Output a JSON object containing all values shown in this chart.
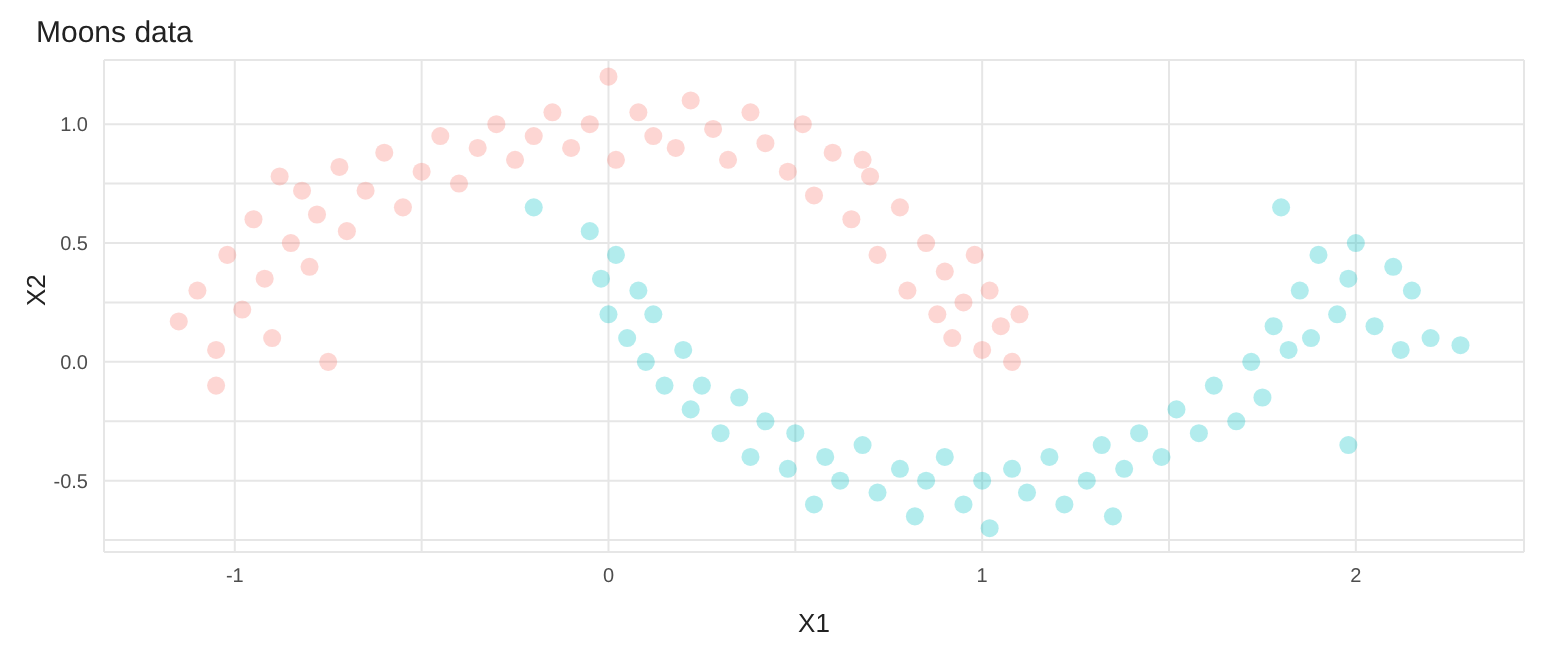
{
  "chart_data": {
    "type": "scatter",
    "title": "Moons data",
    "xlabel": "X1",
    "ylabel": "X2",
    "marker": "circle",
    "grid": true,
    "xlim": [
      -1.35,
      2.45
    ],
    "ylim": [
      -0.8,
      1.27
    ],
    "xticks": [
      -1,
      {
        "value": -0.5,
        "label": null
      },
      0,
      {
        "value": 0.5,
        "label": null
      },
      1,
      {
        "value": 1.5,
        "label": null
      },
      2
    ],
    "yticks": [
      {
        "value": -0.75,
        "label": null
      },
      -0.5,
      {
        "value": -0.25,
        "label": null
      },
      {
        "value": 0,
        "label": "0.0"
      },
      {
        "value": 0.25,
        "label": null
      },
      0.5,
      {
        "value": 0.75,
        "label": null
      },
      {
        "value": 1,
        "label": "1.0"
      }
    ],
    "series": [
      {
        "color": "#f8766d",
        "x": [
          -1.15,
          -1.1,
          -1.05,
          -1.02,
          -0.98,
          -0.95,
          -0.92,
          -0.9,
          -0.88,
          -0.85,
          -0.8,
          -0.78,
          -0.75,
          -0.72,
          -0.7,
          -0.65,
          -0.6,
          -0.55,
          -0.5,
          -0.45,
          -0.4,
          -0.35,
          -0.3,
          -0.25,
          -0.2,
          -0.15,
          -0.1,
          -0.05,
          0.0,
          0.02,
          0.08,
          0.12,
          0.18,
          0.22,
          0.28,
          0.32,
          0.38,
          0.42,
          0.48,
          0.52,
          0.55,
          0.6,
          0.65,
          0.7,
          0.72,
          0.78,
          0.8,
          0.85,
          0.88,
          0.9,
          0.92,
          0.95,
          0.98,
          1.0,
          1.02,
          1.05,
          1.08,
          1.1,
          0.68,
          -0.82,
          -1.05
        ],
        "values": [
          0.17,
          0.3,
          0.05,
          0.45,
          0.22,
          0.6,
          0.35,
          0.1,
          0.78,
          0.5,
          0.4,
          0.62,
          0.0,
          0.82,
          0.55,
          0.72,
          0.88,
          0.65,
          0.8,
          0.95,
          0.75,
          0.9,
          1.0,
          0.85,
          0.95,
          1.05,
          0.9,
          1.0,
          1.2,
          0.85,
          1.05,
          0.95,
          0.9,
          1.1,
          0.98,
          0.85,
          1.05,
          0.92,
          0.8,
          1.0,
          0.7,
          0.88,
          0.6,
          0.78,
          0.45,
          0.65,
          0.3,
          0.5,
          0.2,
          0.38,
          0.1,
          0.25,
          0.45,
          0.05,
          0.3,
          0.15,
          0.0,
          0.2,
          0.85,
          0.72,
          -0.1
        ]
      },
      {
        "color": "#00bfc4",
        "x": [
          -0.05,
          -0.02,
          0.0,
          0.02,
          0.05,
          0.08,
          0.1,
          0.12,
          0.15,
          0.2,
          0.22,
          0.25,
          0.3,
          0.35,
          0.38,
          0.42,
          0.48,
          0.5,
          0.55,
          0.58,
          0.62,
          0.68,
          0.72,
          0.78,
          0.82,
          0.85,
          0.9,
          0.95,
          1.0,
          1.02,
          1.08,
          1.12,
          1.18,
          1.22,
          1.28,
          1.32,
          1.38,
          1.42,
          1.48,
          1.52,
          1.58,
          1.62,
          1.68,
          1.72,
          1.75,
          1.78,
          1.82,
          1.85,
          1.88,
          1.9,
          1.95,
          1.98,
          2.0,
          2.05,
          2.1,
          2.12,
          2.15,
          2.2,
          2.28,
          1.8,
          -0.2,
          1.98,
          1.35
        ],
        "values": [
          0.55,
          0.35,
          0.2,
          0.45,
          0.1,
          0.3,
          0.0,
          0.2,
          -0.1,
          0.05,
          -0.2,
          -0.1,
          -0.3,
          -0.15,
          -0.4,
          -0.25,
          -0.45,
          -0.3,
          -0.6,
          -0.4,
          -0.5,
          -0.35,
          -0.55,
          -0.45,
          -0.65,
          -0.5,
          -0.4,
          -0.6,
          -0.5,
          -0.7,
          -0.45,
          -0.55,
          -0.4,
          -0.6,
          -0.5,
          -0.35,
          -0.45,
          -0.3,
          -0.4,
          -0.2,
          -0.3,
          -0.1,
          -0.25,
          0.0,
          -0.15,
          0.15,
          0.05,
          0.3,
          0.1,
          0.45,
          0.2,
          0.35,
          0.5,
          0.15,
          0.4,
          0.05,
          0.3,
          0.1,
          0.07,
          0.65,
          0.65,
          -0.35,
          -0.65
        ]
      }
    ]
  }
}
